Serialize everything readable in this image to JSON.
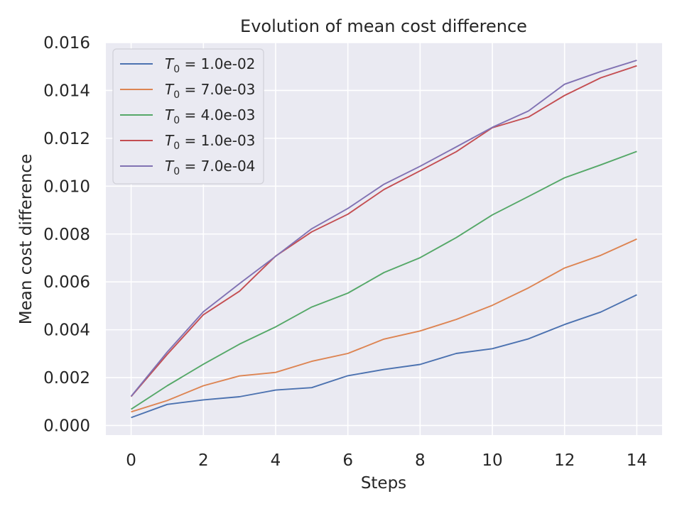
{
  "chart_data": {
    "type": "line",
    "title": "Evolution of mean cost difference",
    "xlabel": "Steps",
    "ylabel": "Mean cost difference",
    "xlim": [
      -0.7,
      14.7
    ],
    "ylim": [
      -0.0004,
      0.016
    ],
    "x_ticks": [
      0,
      2,
      4,
      6,
      8,
      10,
      12,
      14
    ],
    "x_tick_labels": [
      "0",
      "2",
      "4",
      "6",
      "8",
      "10",
      "12",
      "14"
    ],
    "y_ticks": [
      0.0,
      0.002,
      0.004,
      0.006,
      0.008,
      0.01,
      0.012,
      0.014,
      0.016
    ],
    "y_tick_labels": [
      "0.000",
      "0.002",
      "0.004",
      "0.006",
      "0.008",
      "0.010",
      "0.012",
      "0.014",
      "0.016"
    ],
    "grid": true,
    "legend_position": "top-left",
    "background": "#eaeaf2",
    "x": [
      0,
      1,
      2,
      3,
      4,
      5,
      6,
      7,
      8,
      9,
      10,
      11,
      12,
      13,
      14
    ],
    "series": [
      {
        "name": "1.0e-02",
        "label_prefix": "T",
        "label_sub": "0",
        "color": "#4c72b0",
        "values": [
          0.00033,
          0.00088,
          0.00107,
          0.0012,
          0.00148,
          0.00158,
          0.00208,
          0.00234,
          0.00255,
          0.00301,
          0.00321,
          0.00362,
          0.00422,
          0.00474,
          0.00546
        ]
      },
      {
        "name": "7.0e-03",
        "label_prefix": "T",
        "label_sub": "0",
        "color": "#dd8452",
        "values": [
          0.00057,
          0.00104,
          0.00166,
          0.00207,
          0.00222,
          0.00268,
          0.00301,
          0.00361,
          0.00395,
          0.00443,
          0.00502,
          0.00575,
          0.00658,
          0.00711,
          0.00779
        ]
      },
      {
        "name": "4.0e-03",
        "label_prefix": "T",
        "label_sub": "0",
        "color": "#55a868",
        "values": [
          0.00068,
          0.00166,
          0.00256,
          0.0034,
          0.00412,
          0.00495,
          0.00553,
          0.00639,
          0.00701,
          0.00785,
          0.0088,
          0.00957,
          0.01035,
          0.01089,
          0.01145
        ]
      },
      {
        "name": "1.0e-03",
        "label_prefix": "T",
        "label_sub": "0",
        "color": "#c44e52",
        "values": [
          0.00121,
          0.00297,
          0.00463,
          0.00561,
          0.00708,
          0.00809,
          0.00883,
          0.00986,
          0.01064,
          0.01144,
          0.01244,
          0.01289,
          0.01379,
          0.01453,
          0.01503
        ]
      },
      {
        "name": "7.0e-04",
        "label_prefix": "T",
        "label_sub": "0",
        "color": "#8172b3",
        "values": [
          0.00122,
          0.00307,
          0.00475,
          0.00593,
          0.00707,
          0.00822,
          0.00907,
          0.01008,
          0.01083,
          0.01164,
          0.01246,
          0.01314,
          0.01426,
          0.01479,
          0.01526
        ]
      }
    ]
  }
}
